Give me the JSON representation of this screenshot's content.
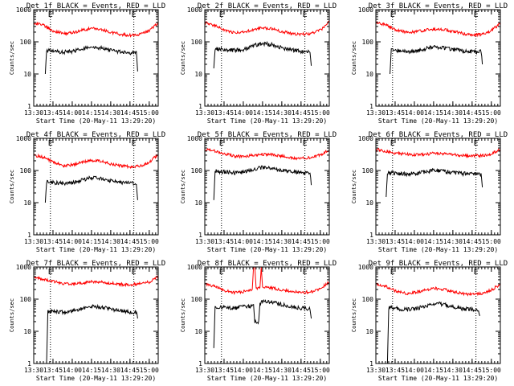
{
  "figure": {
    "shared_xlabel": "Start Time (20-May-11 13:29:20)",
    "shared_ylabel": "Counts/sec",
    "colors": {
      "events": "#000000",
      "lld": "#ff0000",
      "axes": "#000000",
      "background": "#ffffff"
    }
  },
  "chart_data": [
    {
      "type": "line",
      "title": "Det 1f BLACK = Events, RED = LLD",
      "xlabel": "Start Time (20-May-11 13:29:20)",
      "ylabel": "Counts/sec",
      "xlim": [
        "13:30",
        "15:07"
      ],
      "ylim": [
        1,
        1000
      ],
      "yscale": "log",
      "xticks": [
        "13:30",
        "13:45",
        "14:00",
        "14:15",
        "14:30",
        "14:45",
        "15:00"
      ],
      "yticks": [
        "1",
        "10",
        "100",
        "1000"
      ],
      "markers": [
        {
          "label": "E",
          "x": "13:43"
        },
        {
          "label": "E",
          "x": "14:48"
        }
      ],
      "grid": false,
      "series": [
        {
          "x": [
            "13:30",
            "13:38",
            "13:45",
            "13:53",
            "14:00",
            "14:08",
            "14:15",
            "14:23",
            "14:30",
            "14:38",
            "14:45",
            "14:53",
            "15:00",
            "15:07"
          ],
          "values": [
            400,
            320,
            220,
            180,
            190,
            230,
            260,
            240,
            200,
            170,
            160,
            170,
            220,
            400
          ]
        },
        {
          "x": [
            "13:39",
            "13:40",
            "13:45",
            "13:53",
            "14:00",
            "14:08",
            "14:15",
            "14:23",
            "14:30",
            "14:38",
            "14:45",
            "14:50",
            "14:51"
          ],
          "values": [
            10,
            55,
            50,
            48,
            50,
            60,
            70,
            65,
            55,
            48,
            45,
            50,
            12
          ]
        }
      ]
    },
    {
      "type": "line",
      "title": "Det 2f BLACK = Events, RED = LLD",
      "xlabel": "Start Time (20-May-11 13:29:20)",
      "ylabel": "Counts/sec",
      "xlim": [
        "13:30",
        "15:07"
      ],
      "ylim": [
        1,
        1000
      ],
      "yscale": "log",
      "xticks": [
        "13:30",
        "13:45",
        "14:00",
        "14:15",
        "14:30",
        "14:45",
        "15:00"
      ],
      "yticks": [
        "1",
        "10",
        "100",
        "1000"
      ],
      "markers": [
        {
          "label": "E",
          "x": "13:43"
        },
        {
          "label": "E",
          "x": "14:48"
        }
      ],
      "grid": false,
      "series": [
        {
          "x": [
            "13:30",
            "13:38",
            "13:45",
            "13:53",
            "14:00",
            "14:08",
            "14:15",
            "14:23",
            "14:30",
            "14:38",
            "14:45",
            "14:53",
            "15:00",
            "15:07"
          ],
          "values": [
            400,
            320,
            230,
            190,
            200,
            240,
            270,
            250,
            210,
            180,
            170,
            180,
            230,
            420
          ]
        },
        {
          "x": [
            "13:37",
            "13:38",
            "13:45",
            "13:53",
            "14:00",
            "14:08",
            "14:15",
            "14:23",
            "14:30",
            "14:38",
            "14:45",
            "14:52",
            "14:53"
          ],
          "values": [
            15,
            60,
            58,
            55,
            58,
            75,
            90,
            80,
            65,
            55,
            50,
            48,
            18
          ]
        }
      ]
    },
    {
      "type": "line",
      "title": "Det 3f BLACK = Events, RED = LLD",
      "xlabel": "Start Time (20-May-11 13:29:20)",
      "ylabel": "Counts/sec",
      "xlim": [
        "13:30",
        "15:07"
      ],
      "ylim": [
        1,
        1000
      ],
      "yscale": "log",
      "xticks": [
        "13:30",
        "13:45",
        "14:00",
        "14:15",
        "14:30",
        "14:45",
        "15:00"
      ],
      "yticks": [
        "1",
        "10",
        "100",
        "1000"
      ],
      "markers": [
        {
          "label": "E",
          "x": "13:43"
        },
        {
          "label": "E",
          "x": "14:48"
        }
      ],
      "grid": false,
      "series": [
        {
          "x": [
            "13:30",
            "13:38",
            "13:45",
            "13:53",
            "14:00",
            "14:08",
            "14:15",
            "14:23",
            "14:30",
            "14:38",
            "14:45",
            "14:53",
            "15:00",
            "15:07"
          ],
          "values": [
            420,
            330,
            240,
            200,
            200,
            230,
            250,
            240,
            210,
            180,
            170,
            170,
            220,
            380
          ]
        },
        {
          "x": [
            "13:41",
            "13:42",
            "13:45",
            "13:53",
            "14:00",
            "14:08",
            "14:15",
            "14:23",
            "14:30",
            "14:38",
            "14:45",
            "14:52",
            "14:53"
          ],
          "values": [
            10,
            60,
            55,
            50,
            52,
            60,
            70,
            65,
            58,
            52,
            50,
            50,
            20
          ]
        }
      ]
    },
    {
      "type": "line",
      "title": "Det 4f BLACK = Events, RED = LLD",
      "xlabel": "Start Time (20-May-11 13:29:20)",
      "ylabel": "Counts/sec",
      "xlim": [
        "13:30",
        "15:07"
      ],
      "ylim": [
        1,
        1000
      ],
      "yscale": "log",
      "xticks": [
        "13:30",
        "13:45",
        "14:00",
        "14:15",
        "14:30",
        "14:45",
        "15:00"
      ],
      "yticks": [
        "1",
        "10",
        "100",
        "1000"
      ],
      "markers": [
        {
          "label": "E",
          "x": "13:43"
        },
        {
          "label": "E",
          "x": "14:48"
        }
      ],
      "grid": false,
      "series": [
        {
          "x": [
            "13:30",
            "13:38",
            "13:45",
            "13:53",
            "14:00",
            "14:08",
            "14:15",
            "14:23",
            "14:30",
            "14:38",
            "14:45",
            "14:53",
            "15:00",
            "15:07"
          ],
          "values": [
            300,
            250,
            180,
            140,
            150,
            180,
            210,
            190,
            160,
            140,
            130,
            140,
            180,
            320
          ]
        },
        {
          "x": [
            "13:39",
            "13:40",
            "13:45",
            "13:53",
            "14:00",
            "14:08",
            "14:15",
            "14:23",
            "14:30",
            "14:38",
            "14:45",
            "14:50",
            "14:51"
          ],
          "values": [
            10,
            45,
            42,
            40,
            42,
            50,
            60,
            55,
            48,
            42,
            40,
            40,
            12
          ]
        }
      ]
    },
    {
      "type": "line",
      "title": "Det 5f BLACK = Events, RED = LLD",
      "xlabel": "Start Time (20-May-11 13:29:20)",
      "ylabel": "Counts/sec",
      "xlim": [
        "13:30",
        "15:07"
      ],
      "ylim": [
        1,
        1000
      ],
      "yscale": "log",
      "xticks": [
        "13:30",
        "13:45",
        "14:00",
        "14:15",
        "14:30",
        "14:45",
        "15:00"
      ],
      "yticks": [
        "1",
        "10",
        "100",
        "1000"
      ],
      "markers": [
        {
          "label": "E",
          "x": "13:43"
        },
        {
          "label": "E",
          "x": "14:48"
        }
      ],
      "grid": false,
      "series": [
        {
          "x": [
            "13:30",
            "13:38",
            "13:45",
            "13:53",
            "14:00",
            "14:08",
            "14:15",
            "14:23",
            "14:30",
            "14:38",
            "14:45",
            "14:53",
            "15:00",
            "15:07"
          ],
          "values": [
            450,
            400,
            330,
            280,
            270,
            300,
            320,
            310,
            280,
            250,
            240,
            250,
            300,
            450
          ]
        },
        {
          "x": [
            "13:37",
            "13:38",
            "13:45",
            "13:53",
            "14:00",
            "14:08",
            "14:15",
            "14:23",
            "14:30",
            "14:38",
            "14:45",
            "14:52",
            "14:53"
          ],
          "values": [
            12,
            95,
            90,
            85,
            88,
            110,
            125,
            115,
            100,
            90,
            85,
            82,
            35
          ]
        }
      ]
    },
    {
      "type": "line",
      "title": "Det 6f BLACK = Events, RED = LLD",
      "xlabel": "Start Time (20-May-11 13:29:20)",
      "ylabel": "Counts/sec",
      "xlim": [
        "13:30",
        "15:07"
      ],
      "ylim": [
        1,
        1000
      ],
      "yscale": "log",
      "xticks": [
        "13:30",
        "13:45",
        "14:00",
        "14:15",
        "14:30",
        "14:45",
        "15:00"
      ],
      "yticks": [
        "1",
        "10",
        "100",
        "1000"
      ],
      "markers": [
        {
          "label": "E",
          "x": "13:43"
        },
        {
          "label": "E",
          "x": "14:48"
        }
      ],
      "grid": false,
      "series": [
        {
          "x": [
            "13:30",
            "13:38",
            "13:45",
            "13:53",
            "14:00",
            "14:08",
            "14:15",
            "14:23",
            "14:30",
            "14:38",
            "14:45",
            "14:53",
            "15:00",
            "15:07"
          ],
          "values": [
            450,
            400,
            350,
            320,
            310,
            320,
            340,
            330,
            310,
            290,
            280,
            290,
            330,
            450
          ]
        },
        {
          "x": [
            "13:38",
            "13:39",
            "13:45",
            "13:53",
            "14:00",
            "14:08",
            "14:15",
            "14:23",
            "14:30",
            "14:38",
            "14:45",
            "14:52",
            "14:53"
          ],
          "values": [
            15,
            85,
            82,
            78,
            80,
            90,
            100,
            95,
            85,
            80,
            78,
            75,
            30
          ]
        }
      ]
    },
    {
      "type": "line",
      "title": "Det 7f BLACK = Events, RED = LLD",
      "xlabel": "Start Time (20-May-11 13:29:20)",
      "ylabel": "Counts/sec",
      "xlim": [
        "13:30",
        "15:07"
      ],
      "ylim": [
        1,
        1000
      ],
      "yscale": "log",
      "xticks": [
        "13:30",
        "13:45",
        "14:00",
        "14:15",
        "14:30",
        "14:45",
        "15:00"
      ],
      "yticks": [
        "1",
        "10",
        "100",
        "1000"
      ],
      "markers": [
        {
          "label": "E",
          "x": "13:43"
        },
        {
          "label": "E",
          "x": "14:48"
        }
      ],
      "grid": false,
      "series": [
        {
          "x": [
            "13:30",
            "13:38",
            "13:45",
            "13:53",
            "14:00",
            "14:08",
            "14:15",
            "14:23",
            "14:30",
            "14:38",
            "14:45",
            "14:53",
            "15:00",
            "15:07"
          ],
          "values": [
            480,
            420,
            350,
            310,
            300,
            320,
            350,
            340,
            310,
            290,
            280,
            300,
            340,
            500
          ]
        },
        {
          "x": [
            "13:40",
            "13:41",
            "13:45",
            "13:53",
            "14:00",
            "14:08",
            "14:15",
            "14:23",
            "14:30",
            "14:38",
            "14:45",
            "14:50",
            "14:51"
          ],
          "values": [
            1,
            40,
            42,
            40,
            42,
            50,
            58,
            55,
            50,
            42,
            40,
            38,
            25
          ]
        }
      ]
    },
    {
      "type": "line",
      "title": "Det 8f BLACK = Events, RED = LLD",
      "xlabel": "Start Time (20-May-11 13:29:20)",
      "ylabel": "Counts/sec",
      "xlim": [
        "13:30",
        "15:07"
      ],
      "ylim": [
        1,
        1000
      ],
      "yscale": "log",
      "xticks": [
        "13:30",
        "13:45",
        "14:00",
        "14:15",
        "14:30",
        "14:45",
        "15:00"
      ],
      "yticks": [
        "1",
        "10",
        "100",
        "1000"
      ],
      "markers": [
        {
          "label": "E",
          "x": "13:43"
        },
        {
          "label": "E",
          "x": "14:48"
        }
      ],
      "grid": false,
      "series": [
        {
          "x": [
            "13:30",
            "13:38",
            "13:45",
            "13:53",
            "14:00",
            "14:07",
            "14:08",
            "14:09",
            "14:10",
            "14:13",
            "14:14",
            "14:15",
            "14:23",
            "14:30",
            "14:38",
            "14:45",
            "14:53",
            "15:00",
            "15:07"
          ],
          "values": [
            300,
            250,
            190,
            160,
            170,
            200,
            1000,
            1000,
            220,
            230,
            1000,
            230,
            220,
            190,
            170,
            160,
            170,
            210,
            350
          ]
        },
        {
          "x": [
            "13:37",
            "13:38",
            "13:45",
            "13:53",
            "14:00",
            "14:08",
            "14:09",
            "14:12",
            "14:13",
            "14:15",
            "14:23",
            "14:30",
            "14:38",
            "14:45",
            "14:52",
            "14:53"
          ],
          "values": [
            3,
            55,
            55,
            52,
            58,
            60,
            20,
            20,
            75,
            85,
            80,
            68,
            58,
            52,
            50,
            25
          ]
        }
      ]
    },
    {
      "type": "line",
      "title": "Det 9f BLACK = Events, RED = LLD",
      "xlabel": "Start Time (20-May-11 13:29:20)",
      "ylabel": "Counts/sec",
      "xlim": [
        "13:30",
        "15:07"
      ],
      "ylim": [
        1,
        1000
      ],
      "yscale": "log",
      "xticks": [
        "13:30",
        "13:45",
        "14:00",
        "14:15",
        "14:30",
        "14:45",
        "15:00"
      ],
      "yticks": [
        "1",
        "10",
        "100",
        "1000"
      ],
      "markers": [
        {
          "label": "E",
          "x": "13:43"
        },
        {
          "label": "E",
          "x": "14:48"
        }
      ],
      "grid": false,
      "series": [
        {
          "x": [
            "13:30",
            "13:38",
            "13:45",
            "13:53",
            "14:00",
            "14:08",
            "14:15",
            "14:23",
            "14:30",
            "14:38",
            "14:45",
            "14:53",
            "15:00",
            "15:07"
          ],
          "values": [
            300,
            250,
            180,
            150,
            160,
            190,
            220,
            200,
            170,
            150,
            140,
            150,
            190,
            300
          ]
        },
        {
          "x": [
            "13:39",
            "13:40",
            "13:45",
            "13:53",
            "14:00",
            "14:08",
            "14:15",
            "14:23",
            "14:30",
            "14:38",
            "14:45",
            "14:50",
            "14:51"
          ],
          "values": [
            1,
            55,
            52,
            48,
            50,
            58,
            75,
            68,
            58,
            50,
            48,
            45,
            30
          ]
        }
      ]
    }
  ]
}
